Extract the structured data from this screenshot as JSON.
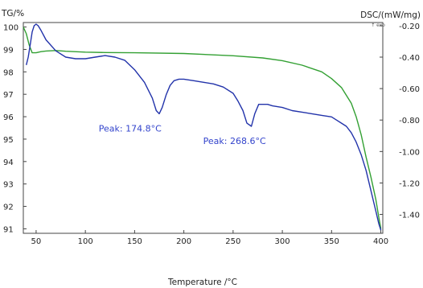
{
  "chart_data": {
    "type": "line",
    "ylabel_left": "TG/%",
    "ylabel_right": "DSC/(mW/mg)",
    "xlabel": "Temperature /°C",
    "exo_label": "↑ exo",
    "xlim": [
      37,
      402
    ],
    "ylim_left": [
      90.8,
      100.2
    ],
    "ylim_right": [
      -1.52,
      -0.18
    ],
    "x_ticks": [
      "50",
      "100",
      "150",
      "200",
      "250",
      "300",
      "350",
      "400"
    ],
    "y_ticks_left": [
      "100",
      "99",
      "98",
      "97",
      "96",
      "95",
      "94",
      "93",
      "92",
      "91"
    ],
    "y_ticks_right": [
      "-0.20",
      "-0.40",
      "-0.60",
      "-0.80",
      "-1.00",
      "-1.20",
      "-1.40"
    ],
    "grid": false,
    "series": [
      {
        "axis": "left",
        "color": "#33a033",
        "x": [
          37,
          40,
          43,
          46,
          50,
          55,
          60,
          70,
          80,
          100,
          120,
          150,
          200,
          250,
          280,
          300,
          320,
          340,
          350,
          360,
          370,
          375,
          380,
          385,
          390,
          395,
          398,
          400
        ],
        "y": [
          100,
          99.7,
          99.2,
          98.85,
          98.85,
          98.9,
          98.93,
          98.95,
          98.92,
          98.88,
          98.86,
          98.85,
          98.82,
          98.72,
          98.62,
          98.5,
          98.3,
          98.0,
          97.7,
          97.3,
          96.6,
          96.0,
          95.2,
          94.2,
          93.3,
          92.3,
          91.5,
          91.0
        ]
      },
      {
        "axis": "right",
        "color": "#2233aa",
        "x": [
          40,
          42,
          44,
          46,
          48,
          50,
          52,
          55,
          60,
          70,
          80,
          90,
          100,
          110,
          120,
          130,
          140,
          150,
          160,
          168,
          172,
          175,
          178,
          182,
          186,
          190,
          195,
          200,
          210,
          220,
          230,
          240,
          250,
          255,
          260,
          264,
          268.6,
          272,
          276,
          280,
          285,
          290,
          300,
          310,
          320,
          330,
          340,
          350,
          355,
          360,
          365,
          370,
          375,
          380,
          385,
          390,
          395,
          398,
          400
        ],
        "y": [
          -0.45,
          -0.4,
          -0.32,
          -0.24,
          -0.2,
          -0.19,
          -0.2,
          -0.23,
          -0.29,
          -0.36,
          -0.4,
          -0.41,
          -0.41,
          -0.4,
          -0.39,
          -0.4,
          -0.42,
          -0.48,
          -0.56,
          -0.66,
          -0.74,
          -0.76,
          -0.72,
          -0.64,
          -0.58,
          -0.55,
          -0.54,
          -0.54,
          -0.55,
          -0.56,
          -0.57,
          -0.59,
          -0.63,
          -0.68,
          -0.74,
          -0.82,
          -0.84,
          -0.76,
          -0.7,
          -0.7,
          -0.7,
          -0.71,
          -0.72,
          -0.74,
          -0.75,
          -0.76,
          -0.77,
          -0.78,
          -0.8,
          -0.82,
          -0.84,
          -0.88,
          -0.94,
          -1.02,
          -1.12,
          -1.25,
          -1.38,
          -1.46,
          -1.5
        ]
      }
    ],
    "annotations": [
      {
        "text": "Peak: 174.8°C",
        "x": 174.8,
        "y": -0.76
      },
      {
        "text": "Peak: 268.6°C",
        "x": 268.6,
        "y": -0.84
      }
    ]
  }
}
